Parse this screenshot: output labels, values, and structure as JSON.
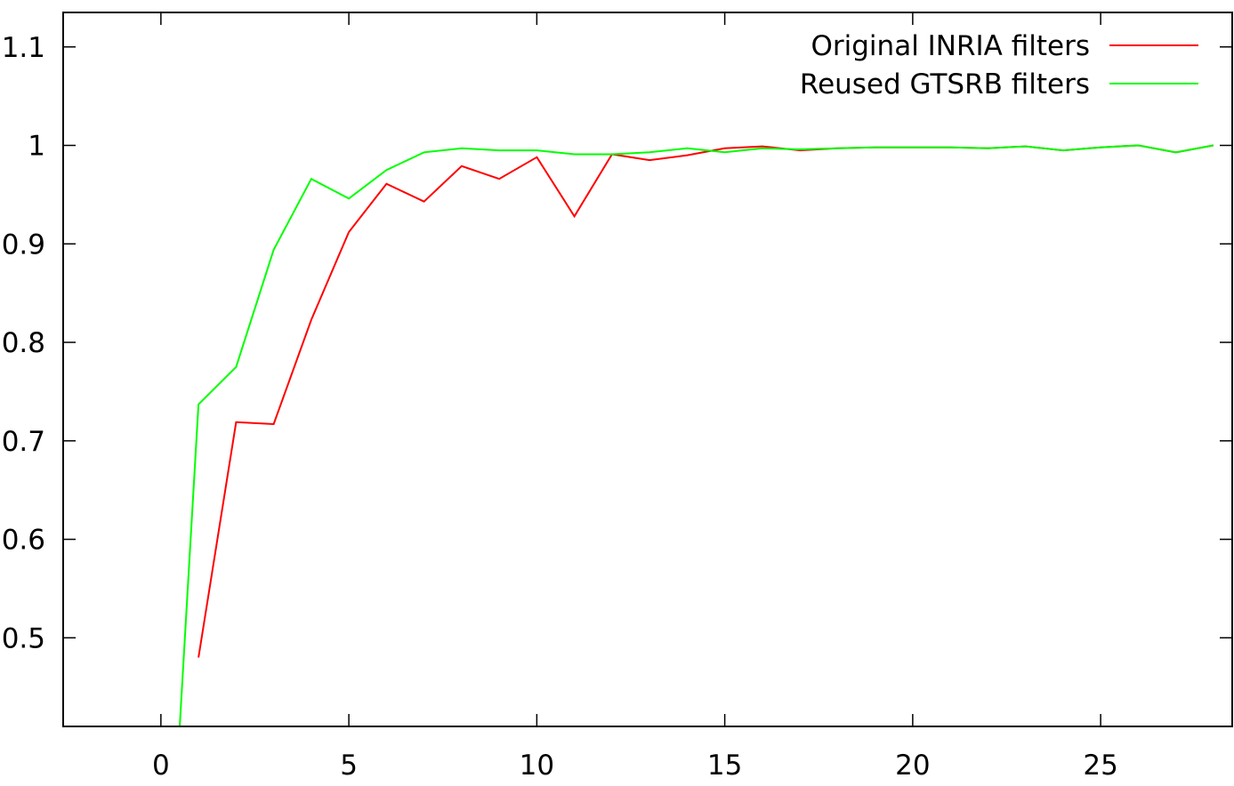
{
  "chart_data": {
    "type": "line",
    "title": "",
    "xlabel": "",
    "ylabel": "",
    "xlim": [
      -2.6,
      28.5
    ],
    "ylim": [
      0.41,
      1.135
    ],
    "x_ticks": [
      0,
      5,
      10,
      15,
      20,
      25
    ],
    "y_ticks": [
      0.5,
      0.6,
      0.7,
      0.8,
      0.9,
      1.0,
      1.1
    ],
    "x_tick_labels": [
      "0",
      "5",
      "10",
      "15",
      "20",
      "25"
    ],
    "y_tick_labels": [
      "0.5",
      "0.6",
      "0.7",
      "0.8",
      "0.9",
      "1",
      "1.1"
    ],
    "grid": false,
    "legend": "top-right",
    "series": [
      {
        "name": "Original INRIA filters",
        "color": "#ff0000",
        "x": [
          1,
          2,
          3,
          4,
          5,
          6,
          7,
          8,
          9,
          10,
          11,
          12,
          13,
          14,
          15,
          16,
          17,
          18,
          19,
          20,
          21,
          22,
          23,
          24,
          25,
          26,
          27,
          28
        ],
        "y": [
          0.48,
          0.719,
          0.717,
          0.823,
          0.912,
          0.961,
          0.943,
          0.979,
          0.966,
          0.988,
          0.928,
          0.991,
          0.985,
          0.99,
          0.997,
          0.999,
          0.995,
          0.997,
          0.998,
          0.998,
          0.998,
          0.997,
          0.999,
          0.995,
          0.998,
          1.0,
          0.993,
          1.0
        ]
      },
      {
        "name": "Reused GTSRB filters",
        "color": "#00ff00",
        "x": [
          0.5,
          1,
          2,
          3,
          4,
          5,
          6,
          7,
          8,
          9,
          10,
          11,
          12,
          13,
          14,
          15,
          16,
          17,
          18,
          19,
          20,
          21,
          22,
          23,
          24,
          25,
          26,
          27,
          28
        ],
        "y": [
          0.41,
          0.737,
          0.775,
          0.894,
          0.966,
          0.946,
          0.975,
          0.993,
          0.997,
          0.995,
          0.995,
          0.991,
          0.991,
          0.993,
          0.997,
          0.993,
          0.997,
          0.996,
          0.997,
          0.998,
          0.998,
          0.998,
          0.997,
          0.999,
          0.995,
          0.998,
          1.0,
          0.993,
          1.0
        ]
      }
    ]
  }
}
